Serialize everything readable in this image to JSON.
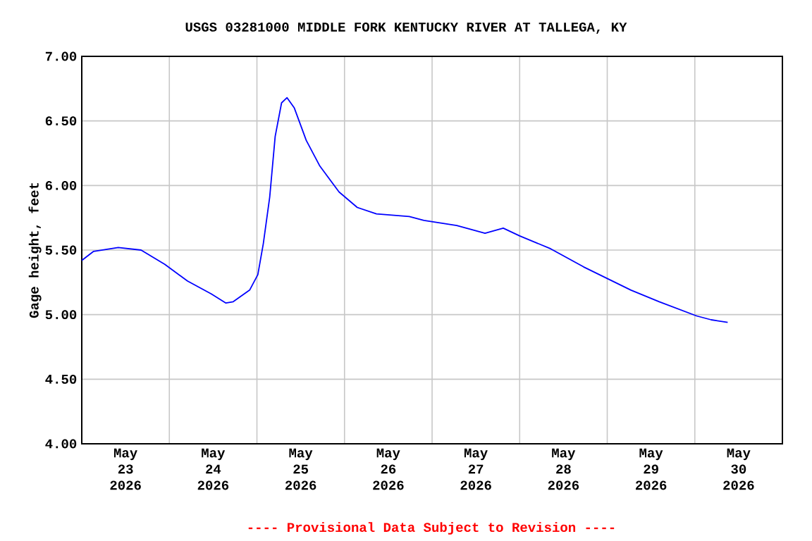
{
  "chart_data": {
    "type": "line",
    "title": "USGS 03281000 MIDDLE FORK KENTUCKY RIVER AT TALLEGA, KY",
    "ylabel": "Gage height, feet",
    "annotations": [
      "---- Provisional Data Subject to Revision ----"
    ],
    "x": [
      "2026-05-23T00:00",
      "2026-05-23T03:15",
      "2026-05-23T10:00",
      "2026-05-23T16:15",
      "2026-05-23T22:45",
      "2026-05-24T05:00",
      "2026-05-24T11:30",
      "2026-05-24T15:30",
      "2026-05-24T17:30",
      "2026-05-24T22:00",
      "2026-05-25T00:15",
      "2026-05-25T01:45",
      "2026-05-25T03:30",
      "2026-05-25T05:00",
      "2026-05-25T06:45",
      "2026-05-25T08:15",
      "2026-05-25T10:15",
      "2026-05-25T13:30",
      "2026-05-25T17:15",
      "2026-05-25T22:30",
      "2026-05-26T03:30",
      "2026-05-26T08:45",
      "2026-05-26T17:45",
      "2026-05-26T21:45",
      "2026-05-27T06:45",
      "2026-05-27T14:30",
      "2026-05-27T19:30",
      "2026-05-28T00:00",
      "2026-05-28T08:30",
      "2026-05-28T17:30",
      "2026-05-29T00:00",
      "2026-05-29T06:30",
      "2026-05-29T14:15",
      "2026-05-30T00:30",
      "2026-05-30T04:30",
      "2026-05-30T09:00"
    ],
    "series": [
      {
        "color": "#0000ff",
        "values": [
          5.42,
          5.49,
          5.52,
          5.5,
          5.39,
          5.26,
          5.16,
          5.09,
          5.1,
          5.19,
          5.31,
          5.55,
          5.91,
          6.38,
          6.64,
          6.68,
          6.6,
          6.35,
          6.15,
          5.95,
          5.83,
          5.78,
          5.76,
          5.73,
          5.69,
          5.63,
          5.67,
          5.61,
          5.51,
          5.37,
          5.28,
          5.19,
          5.1,
          4.99,
          4.96,
          4.94
        ]
      }
    ],
    "xlim": [
      "2026-05-23T00:00",
      "2026-05-31T00:00"
    ],
    "xticks": [
      {
        "value": "2026-05-23T12:00",
        "label": "May 23 2026"
      },
      {
        "value": "2026-05-24T12:00",
        "label": "May 24 2026"
      },
      {
        "value": "2026-05-25T12:00",
        "label": "May 25 2026"
      },
      {
        "value": "2026-05-26T12:00",
        "label": "May 26 2026"
      },
      {
        "value": "2026-05-27T12:00",
        "label": "May 27 2026"
      },
      {
        "value": "2026-05-28T12:00",
        "label": "May 28 2026"
      },
      {
        "value": "2026-05-29T12:00",
        "label": "May 29 2026"
      },
      {
        "value": "2026-05-30T12:00",
        "label": "May 30 2026"
      },
      {
        "value": "2026-05-24T00:00",
        "label": null
      },
      {
        "value": "2026-05-25T00:00",
        "label": null
      },
      {
        "value": "2026-05-26T00:00",
        "label": null
      },
      {
        "value": "2026-05-27T00:00",
        "label": null
      },
      {
        "value": "2026-05-28T00:00",
        "label": null
      },
      {
        "value": "2026-05-29T00:00",
        "label": null
      },
      {
        "value": "2026-05-30T00:00",
        "label": null
      }
    ],
    "ylim": [
      4,
      7
    ],
    "yticks": [
      {
        "value": 4,
        "label": "4.00"
      },
      {
        "value": 4.5,
        "label": "4.50"
      },
      {
        "value": 5,
        "label": "5.00"
      },
      {
        "value": 5.5,
        "label": "5.50"
      },
      {
        "value": 6,
        "label": "6.00"
      },
      {
        "value": 6.5,
        "label": "6.50"
      },
      {
        "value": 7,
        "label": "7.00"
      }
    ],
    "grid": true,
    "marker": "none",
    "line_style": "solid"
  }
}
